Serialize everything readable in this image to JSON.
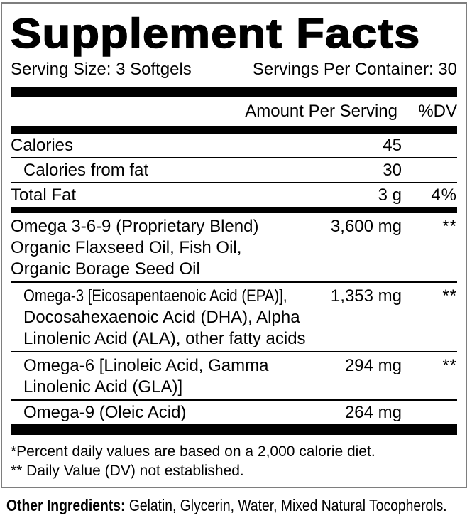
{
  "label": {
    "title": "Supplement Facts",
    "serving_size": "Serving Size: 3 Softgels",
    "servings_per_container": "Servings Per Container: 30",
    "column_headers": {
      "amount": "Amount Per Serving",
      "dv": "%DV"
    },
    "rows": [
      {
        "name": "Calories",
        "amount": "45",
        "dv": ""
      },
      {
        "name": "Calories from fat",
        "amount": "30",
        "dv": ""
      },
      {
        "name": "Total Fat",
        "amount": "3 g",
        "dv": "4%"
      },
      {
        "name_lines": [
          "Omega 3-6-9 (Proprietary Blend)",
          "Organic Flaxseed Oil, Fish Oil,",
          "Organic Borage Seed Oil"
        ],
        "amount": "3,600 mg",
        "dv": "**"
      },
      {
        "name_lines": [
          "Omega-3 [Eicosapentaenoic Acid (EPA)],",
          "Docosahexaenoic Acid (DHA), Alpha",
          "Linolenic Acid (ALA), other fatty acids"
        ],
        "amount": "1,353 mg",
        "dv": "**"
      },
      {
        "name_lines": [
          "Omega-6 [Linoleic Acid, Gamma",
          "Linolenic Acid (GLA)]"
        ],
        "amount": "294 mg",
        "dv": "**"
      },
      {
        "name": "Omega-9 (Oleic Acid)",
        "amount": "264 mg",
        "dv": ""
      }
    ],
    "footnotes": [
      "*Percent daily values are based on a 2,000 calorie diet.",
      "** Daily Value (DV) not established."
    ],
    "other_ingredients_label": "Other Ingredients:",
    "other_ingredients_text": " Gelatin, Glycerin, Water, Mixed Natural Tocopherols."
  },
  "colors": {
    "text": "#000000",
    "divider": "#000000",
    "box_border": "#7e7e7e",
    "background": "#ffffff"
  }
}
